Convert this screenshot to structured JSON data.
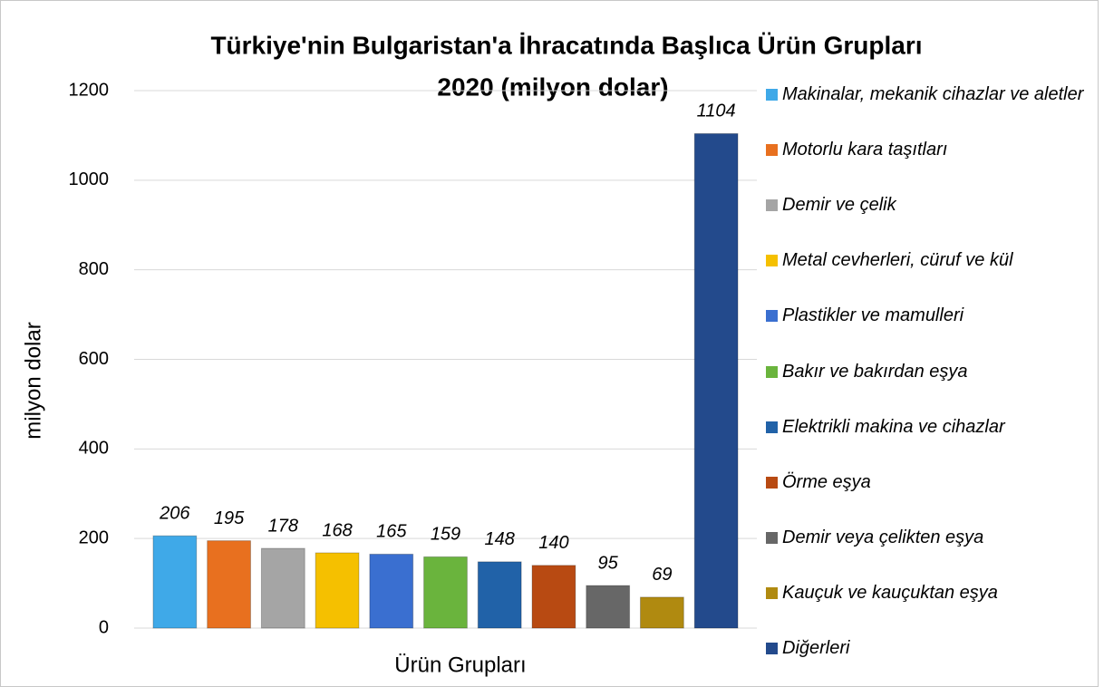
{
  "chart_data": {
    "type": "bar",
    "title": "Türkiye'nin Bulgaristan'a İhracatında Başlıca Ürün Grupları",
    "subtitle": "2020 (milyon dolar)",
    "x_label": "Ürün Grupları",
    "y_label": "milyon dolar",
    "categories": [
      null
    ],
    "series": [
      {
        "name": "Makinalar, mekanik cihazlar ve aletler",
        "color": "#3fa9e8",
        "values": [
          206
        ]
      },
      {
        "name": "Motorlu kara taşıtları",
        "color": "#e8701f",
        "values": [
          195
        ]
      },
      {
        "name": "Demir ve çelik",
        "color": "#a5a5a5",
        "values": [
          178
        ]
      },
      {
        "name": "Metal cevherleri, cüruf ve kül",
        "color": "#f5c000",
        "values": [
          168
        ]
      },
      {
        "name": "Plastikler ve mamulleri",
        "color": "#3a6fd0",
        "values": [
          165
        ]
      },
      {
        "name": "Bakır ve bakırdan eşya",
        "color": "#6ab43d",
        "values": [
          159
        ]
      },
      {
        "name": "Elektrikli makina ve cihazlar",
        "color": "#2162a8",
        "values": [
          148
        ]
      },
      {
        "name": "Örme eşya",
        "color": "#b84a12",
        "values": [
          140
        ]
      },
      {
        "name": "Demir veya çelikten eşya",
        "color": "#676767",
        "values": [
          95
        ]
      },
      {
        "name": "Kauçuk ve kauçuktan eşya",
        "color": "#b08a10",
        "values": [
          69
        ]
      },
      {
        "name": "Diğerleri",
        "color": "#234a8c",
        "values": [
          1104
        ]
      }
    ],
    "ylim": [
      0,
      1200
    ],
    "yticks": [
      0,
      200,
      400,
      600,
      800,
      1000,
      1200
    ],
    "grid": true,
    "legend": "right"
  }
}
